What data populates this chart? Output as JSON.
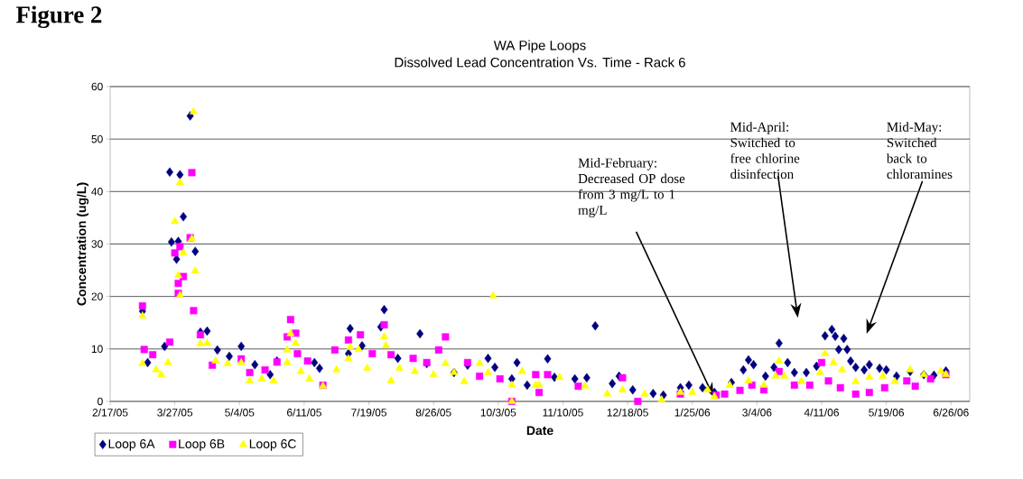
{
  "chart_data": {
    "type": "scatter",
    "title": "WA Pipe Loops",
    "subtitle": "Dissolved Lead Concentration Vs. Time - Rack 6",
    "xlabel": "Date",
    "ylabel": "Concentration (ug/L)",
    "xlim": [
      "2005-02-17",
      "2006-07-07"
    ],
    "xticks": [
      {
        "value": "2005-02-17",
        "label": "2/17/05"
      },
      {
        "value": "2005-03-27",
        "label": "3/27/05"
      },
      {
        "value": "2005-05-04",
        "label": "5/4/05"
      },
      {
        "value": "2005-06-11",
        "label": "6/11/05"
      },
      {
        "value": "2005-07-19",
        "label": "7/19/05"
      },
      {
        "value": "2005-08-26",
        "label": "8/26/05"
      },
      {
        "value": "2005-10-03",
        "label": "10/3/05"
      },
      {
        "value": "2005-11-10",
        "label": "11/10/05"
      },
      {
        "value": "2005-12-18",
        "label": "12/18/05"
      },
      {
        "value": "2006-01-25",
        "label": "1/25/06"
      },
      {
        "value": "2006-03-04",
        "label": "3/4/06"
      },
      {
        "value": "2006-04-11",
        "label": "4/11/06"
      },
      {
        "value": "2006-05-19",
        "label": "5/19/06"
      },
      {
        "value": "2006-06-26",
        "label": "6/26/06"
      }
    ],
    "ylim": [
      0,
      60
    ],
    "yticks": [
      0,
      10,
      20,
      30,
      40,
      50,
      60
    ],
    "grid": "y",
    "legend": "bottom left",
    "annotations": [
      "Figure 2",
      "Mid-February: Decreased OP dose from 3 mg/L to 1 mg/L",
      "Mid-April: Switched to free chlorine disinfection",
      "Mid-May: Switched back to chloramines"
    ],
    "series": [
      {
        "name": "Loop 6A",
        "color": "#000080",
        "marker": "diamond",
        "x": [
          "2005-03-08",
          "2005-03-11",
          "2005-03-21",
          "2005-03-24",
          "2005-03-25",
          "2005-03-28",
          "2005-03-29",
          "2005-03-30",
          "2005-04-01",
          "2005-04-05",
          "2005-04-08",
          "2005-04-11",
          "2005-04-15",
          "2005-04-21",
          "2005-04-28",
          "2005-05-05",
          "2005-05-13",
          "2005-05-22",
          "2005-05-26",
          "2005-06-17",
          "2005-06-20",
          "2005-07-07",
          "2005-07-08",
          "2005-07-15",
          "2005-07-26",
          "2005-07-28",
          "2005-08-05",
          "2005-08-18",
          "2005-08-22",
          "2005-09-07",
          "2005-09-15",
          "2005-09-27",
          "2005-10-01",
          "2005-10-11",
          "2005-10-14",
          "2005-10-20",
          "2005-11-01",
          "2005-11-05",
          "2005-11-17",
          "2005-11-24",
          "2005-11-29",
          "2005-12-09",
          "2005-12-13",
          "2005-12-21",
          "2006-01-02",
          "2006-01-08",
          "2006-01-18",
          "2006-01-23",
          "2006-01-31",
          "2006-02-07",
          "2006-02-17",
          "2006-02-24",
          "2006-02-27",
          "2006-03-02",
          "2006-03-09",
          "2006-03-14",
          "2006-03-17",
          "2006-03-22",
          "2006-03-26",
          "2006-04-02",
          "2006-04-08",
          "2006-04-13",
          "2006-04-17",
          "2006-04-19",
          "2006-04-21",
          "2006-04-24",
          "2006-04-26",
          "2006-04-28",
          "2006-05-01",
          "2006-05-06",
          "2006-05-09",
          "2006-05-15",
          "2006-05-19",
          "2006-05-25",
          "2006-06-02",
          "2006-06-10",
          "2006-06-16",
          "2006-06-23"
        ],
        "values": [
          17.2,
          7.4,
          10.5,
          43.7,
          30.4,
          27.1,
          30.5,
          43.2,
          35.2,
          54.4,
          28.6,
          13.2,
          13.4,
          9.8,
          8.6,
          10.5,
          7.0,
          5.1,
          7.7,
          7.4,
          6.3,
          9.1,
          13.9,
          10.6,
          14.2,
          17.5,
          8.2,
          12.9,
          7.2,
          5.5,
          6.9,
          8.2,
          6.5,
          4.3,
          7.4,
          3.1,
          8.1,
          4.6,
          4.3,
          4.5,
          14.4,
          3.4,
          4.8,
          2.2,
          1.5,
          1.2,
          2.6,
          3.1,
          2.6,
          1.7,
          3.6,
          6.0,
          7.9,
          7.0,
          4.8,
          6.5,
          11.1,
          7.4,
          5.5,
          5.5,
          6.7,
          12.5,
          13.7,
          12.4,
          9.9,
          12.0,
          9.9,
          7.7,
          6.5,
          6.0,
          7.0,
          6.3,
          6.0,
          4.8,
          5.7,
          5.1,
          5.0,
          5.8
        ]
      },
      {
        "name": "Loop 6B",
        "color": "#ff00ff",
        "marker": "square",
        "x": [
          "2005-03-08",
          "2005-03-09",
          "2005-03-14",
          "2005-03-24",
          "2005-03-27",
          "2005-03-29",
          "2005-03-29",
          "2005-03-30",
          "2005-04-01",
          "2005-04-05",
          "2005-04-06",
          "2005-04-07",
          "2005-04-11",
          "2005-04-18",
          "2005-05-05",
          "2005-05-10",
          "2005-05-19",
          "2005-05-26",
          "2005-06-01",
          "2005-06-03",
          "2005-06-06",
          "2005-06-07",
          "2005-06-13",
          "2005-06-22",
          "2005-06-29",
          "2005-07-07",
          "2005-07-14",
          "2005-07-21",
          "2005-07-28",
          "2005-08-01",
          "2005-08-14",
          "2005-08-22",
          "2005-08-29",
          "2005-09-02",
          "2005-09-15",
          "2005-09-22",
          "2005-10-04",
          "2005-10-11",
          "2005-10-25",
          "2005-10-27",
          "2005-11-01",
          "2005-11-19",
          "2005-12-15",
          "2005-12-24",
          "2006-01-18",
          "2006-02-08",
          "2006-02-13",
          "2006-02-22",
          "2006-03-01",
          "2006-03-08",
          "2006-03-17",
          "2006-03-26",
          "2006-04-04",
          "2006-04-11",
          "2006-04-15",
          "2006-04-22",
          "2006-05-01",
          "2006-05-09",
          "2006-05-18",
          "2006-05-31",
          "2006-06-05",
          "2006-06-14",
          "2006-06-23"
        ],
        "values": [
          18.2,
          9.9,
          8.9,
          11.3,
          28.3,
          22.5,
          20.6,
          29.5,
          23.8,
          31.2,
          43.6,
          17.3,
          12.7,
          6.9,
          8.1,
          5.5,
          6.0,
          7.5,
          12.3,
          15.6,
          13.0,
          9.1,
          7.7,
          3.1,
          9.8,
          11.7,
          12.7,
          9.1,
          14.6,
          8.9,
          8.2,
          7.4,
          9.8,
          12.3,
          7.4,
          4.8,
          4.3,
          0.0,
          5.1,
          1.7,
          5.1,
          2.9,
          4.5,
          0.0,
          1.4,
          1.2,
          1.4,
          2.1,
          3.1,
          2.2,
          5.7,
          3.1,
          3.1,
          7.4,
          3.9,
          2.6,
          1.4,
          1.7,
          2.6,
          3.9,
          2.9,
          4.3,
          5.1
        ]
      },
      {
        "name": "Loop 6C",
        "color": "#ffff00",
        "marker": "triangle",
        "x": [
          "2005-03-08",
          "2005-03-08",
          "2005-03-16",
          "2005-03-19",
          "2005-03-23",
          "2005-03-27",
          "2005-03-29",
          "2005-03-30",
          "2005-03-30",
          "2005-04-01",
          "2005-04-06",
          "2005-04-07",
          "2005-04-08",
          "2005-04-11",
          "2005-04-15",
          "2005-04-20",
          "2005-04-27",
          "2005-05-05",
          "2005-05-10",
          "2005-05-17",
          "2005-05-24",
          "2005-06-01",
          "2005-06-01",
          "2005-06-03",
          "2005-06-06",
          "2005-06-09",
          "2005-06-14",
          "2005-06-22",
          "2005-06-30",
          "2005-07-07",
          "2005-07-08",
          "2005-07-13",
          "2005-07-18",
          "2005-07-28",
          "2005-07-29",
          "2005-08-01",
          "2005-08-06",
          "2005-08-15",
          "2005-08-26",
          "2005-09-02",
          "2005-09-07",
          "2005-09-13",
          "2005-09-22",
          "2005-09-27",
          "2005-09-30",
          "2005-10-11",
          "2005-10-11",
          "2005-10-17",
          "2005-10-25",
          "2005-10-27",
          "2005-11-08",
          "2005-11-23",
          "2005-12-06",
          "2005-12-15",
          "2005-12-28",
          "2006-01-07",
          "2006-01-18",
          "2006-01-25",
          "2006-02-03",
          "2006-02-07",
          "2006-02-16",
          "2006-02-27",
          "2006-03-08",
          "2006-03-15",
          "2006-03-17",
          "2006-03-20",
          "2006-03-30",
          "2006-04-10",
          "2006-04-13",
          "2006-04-18",
          "2006-04-23",
          "2006-05-01",
          "2006-05-09",
          "2006-05-17",
          "2006-05-24",
          "2006-06-02",
          "2006-06-10",
          "2006-06-20",
          "2006-06-23"
        ],
        "values": [
          16.3,
          7.2,
          6.0,
          5.1,
          7.4,
          34.3,
          24.0,
          41.7,
          20.2,
          28.3,
          31.0,
          55.2,
          24.9,
          11.0,
          11.1,
          7.7,
          7.2,
          7.4,
          3.9,
          4.3,
          3.9,
          9.8,
          7.4,
          12.9,
          11.1,
          5.7,
          4.3,
          2.9,
          6.0,
          8.1,
          10.3,
          9.9,
          6.3,
          12.3,
          10.6,
          3.9,
          6.3,
          5.7,
          5.1,
          7.2,
          5.5,
          3.8,
          7.2,
          5.5,
          20.1,
          3.1,
          0.0,
          5.7,
          3.1,
          3.1,
          4.6,
          2.9,
          1.4,
          2.2,
          1.4,
          0.3,
          1.7,
          1.7,
          2.2,
          0.9,
          3.1,
          3.9,
          3.1,
          4.8,
          7.7,
          4.8,
          3.8,
          5.5,
          9.1,
          7.4,
          6.0,
          3.8,
          4.6,
          4.8,
          3.8,
          6.0,
          5.1,
          5.7,
          5.1
        ]
      }
    ]
  }
}
